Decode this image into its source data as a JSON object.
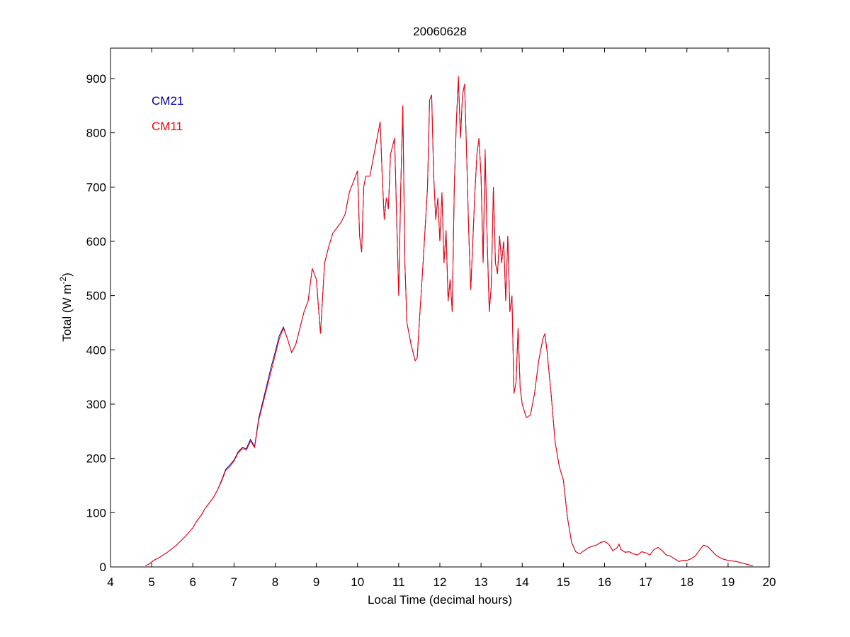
{
  "chart_data": {
    "type": "line",
    "title": "20060628",
    "xlabel": "Local Time (decimal hours)",
    "ylabel": {
      "text": "Total (W m",
      "sup": "-2",
      "end": ")"
    },
    "xlim": [
      4,
      20
    ],
    "xticks": [
      4,
      5,
      6,
      7,
      8,
      9,
      10,
      11,
      12,
      13,
      14,
      15,
      16,
      17,
      18,
      19,
      20
    ],
    "ylim": [
      0,
      956
    ],
    "yticks": [
      0,
      100,
      200,
      300,
      400,
      500,
      600,
      700,
      800,
      900
    ],
    "x": [
      4.85,
      4.95,
      5.05,
      5.2,
      5.4,
      5.6,
      5.8,
      6.0,
      6.1,
      6.2,
      6.3,
      6.4,
      6.5,
      6.6,
      6.7,
      6.8,
      6.9,
      7.0,
      7.1,
      7.2,
      7.3,
      7.4,
      7.5,
      7.6,
      7.7,
      7.8,
      7.9,
      8.0,
      8.1,
      8.2,
      8.3,
      8.4,
      8.5,
      8.6,
      8.7,
      8.8,
      8.9,
      9.0,
      9.1,
      9.2,
      9.3,
      9.4,
      9.5,
      9.6,
      9.7,
      9.8,
      9.9,
      10.0,
      10.05,
      10.1,
      10.15,
      10.2,
      10.3,
      10.4,
      10.5,
      10.55,
      10.6,
      10.65,
      10.7,
      10.75,
      10.8,
      10.9,
      11.0,
      11.05,
      11.1,
      11.15,
      11.2,
      11.3,
      11.4,
      11.45,
      11.5,
      11.6,
      11.7,
      11.75,
      11.8,
      11.85,
      11.9,
      11.95,
      12.0,
      12.05,
      12.1,
      12.15,
      12.2,
      12.25,
      12.3,
      12.35,
      12.4,
      12.45,
      12.5,
      12.55,
      12.6,
      12.65,
      12.7,
      12.75,
      12.8,
      12.85,
      12.9,
      12.95,
      13.0,
      13.05,
      13.1,
      13.15,
      13.2,
      13.25,
      13.3,
      13.35,
      13.4,
      13.45,
      13.5,
      13.55,
      13.6,
      13.65,
      13.7,
      13.75,
      13.8,
      13.85,
      13.9,
      13.95,
      14.0,
      14.1,
      14.2,
      14.3,
      14.4,
      14.5,
      14.55,
      14.6,
      14.7,
      14.8,
      14.9,
      15.0,
      15.1,
      15.2,
      15.3,
      15.4,
      15.5,
      15.6,
      15.7,
      15.8,
      15.9,
      16.0,
      16.1,
      16.2,
      16.3,
      16.35,
      16.4,
      16.5,
      16.6,
      16.7,
      16.8,
      16.9,
      17.0,
      17.1,
      17.2,
      17.3,
      17.4,
      17.5,
      17.6,
      17.7,
      17.8,
      17.9,
      18.0,
      18.1,
      18.2,
      18.3,
      18.4,
      18.5,
      18.6,
      18.7,
      18.8,
      18.9,
      19.0,
      19.2,
      19.4,
      19.6
    ],
    "series": [
      {
        "name": "CM21",
        "color": "#0000a0",
        "values": [
          2,
          6,
          12,
          18,
          28,
          40,
          55,
          72,
          85,
          95,
          108,
          118,
          128,
          142,
          160,
          180,
          188,
          197,
          212,
          220,
          218,
          235,
          222,
          274,
          305,
          336,
          368,
          396,
          426,
          442,
          420,
          395,
          410,
          440,
          470,
          490,
          550,
          530,
          430,
          560,
          590,
          615,
          625,
          635,
          650,
          690,
          710,
          730,
          610,
          580,
          700,
          720,
          720,
          760,
          800,
          820,
          720,
          640,
          680,
          660,
          760,
          790,
          500,
          700,
          850,
          560,
          450,
          410,
          380,
          385,
          450,
          570,
          700,
          860,
          870,
          720,
          640,
          680,
          600,
          690,
          560,
          620,
          490,
          530,
          470,
          700,
          820,
          900,
          790,
          870,
          890,
          760,
          620,
          510,
          600,
          690,
          760,
          790,
          720,
          560,
          760,
          600,
          470,
          520,
          700,
          560,
          540,
          610,
          560,
          600,
          490,
          610,
          470,
          500,
          320,
          340,
          440,
          330,
          300,
          275,
          280,
          320,
          380,
          420,
          430,
          400,
          320,
          230,
          185,
          160,
          90,
          45,
          28,
          24,
          30,
          35,
          38,
          40,
          45,
          47,
          42,
          30,
          35,
          42,
          32,
          27,
          28,
          24,
          22,
          28,
          26,
          22,
          32,
          36,
          30,
          22,
          20,
          15,
          10,
          12,
          12,
          15,
          20,
          30,
          40,
          38,
          30,
          22,
          17,
          14,
          12,
          10,
          6,
          2
        ]
      },
      {
        "name": "CM11",
        "color": "#ff0000",
        "values": [
          2,
          6,
          12,
          18,
          28,
          40,
          55,
          72,
          85,
          95,
          108,
          118,
          128,
          142,
          158,
          178,
          185,
          195,
          210,
          218,
          215,
          232,
          220,
          270,
          300,
          330,
          360,
          390,
          420,
          440,
          420,
          395,
          410,
          440,
          470,
          490,
          550,
          530,
          430,
          560,
          590,
          615,
          625,
          635,
          650,
          690,
          710,
          730,
          610,
          580,
          700,
          720,
          720,
          760,
          800,
          820,
          720,
          640,
          680,
          660,
          760,
          790,
          500,
          700,
          850,
          560,
          450,
          410,
          380,
          385,
          450,
          570,
          700,
          860,
          870,
          720,
          640,
          680,
          600,
          690,
          560,
          620,
          490,
          530,
          470,
          700,
          820,
          905,
          790,
          870,
          890,
          760,
          620,
          510,
          600,
          690,
          760,
          790,
          720,
          560,
          770,
          600,
          470,
          520,
          700,
          560,
          540,
          610,
          560,
          600,
          490,
          610,
          470,
          500,
          320,
          340,
          440,
          330,
          300,
          275,
          280,
          320,
          380,
          420,
          430,
          400,
          320,
          230,
          185,
          160,
          90,
          45,
          28,
          24,
          30,
          35,
          38,
          40,
          45,
          47,
          42,
          30,
          35,
          42,
          32,
          27,
          28,
          24,
          22,
          28,
          26,
          22,
          32,
          36,
          30,
          22,
          20,
          15,
          10,
          12,
          12,
          15,
          20,
          30,
          40,
          38,
          30,
          22,
          17,
          14,
          12,
          10,
          6,
          2
        ]
      }
    ]
  }
}
